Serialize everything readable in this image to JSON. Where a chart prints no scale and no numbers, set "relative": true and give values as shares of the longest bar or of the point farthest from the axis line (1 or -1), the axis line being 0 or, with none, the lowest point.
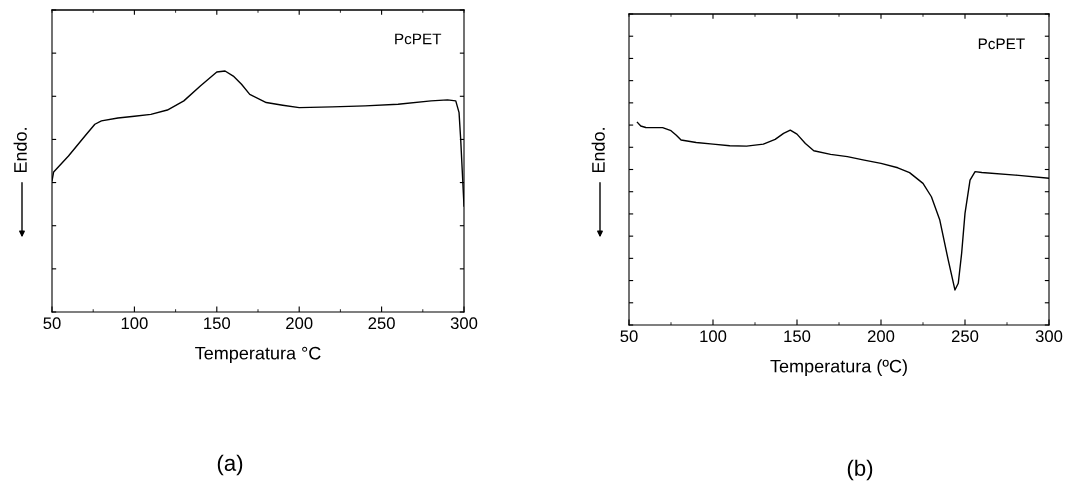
{
  "chart_data": [
    {
      "type": "line",
      "relative": true,
      "xlabel": "Temperatura °C",
      "ylabel": "Endo.",
      "xlim": [
        50,
        300
      ],
      "xticks": [
        50,
        100,
        150,
        200,
        250,
        300
      ],
      "grid": false,
      "legend": false,
      "annotations": [
        "PcPET",
        "(a)"
      ],
      "series": [
        {
          "color": "#000000",
          "x": [
            50,
            51,
            60,
            70,
            76,
            80,
            90,
            100,
            110,
            120,
            130,
            140,
            150,
            155,
            160,
            165,
            170,
            180,
            190,
            200,
            220,
            240,
            260,
            280,
            290,
            295,
            297,
            298,
            299,
            300
          ],
          "values": [
            0.544,
            0.581,
            0.647,
            0.73,
            0.779,
            0.793,
            0.805,
            0.812,
            0.82,
            0.838,
            0.876,
            0.938,
            0.996,
            1,
            0.979,
            0.945,
            0.903,
            0.869,
            0.858,
            0.848,
            0.851,
            0.855,
            0.862,
            0.876,
            0.88,
            0.876,
            0.827,
            0.716,
            0.578,
            0.44
          ]
        }
      ]
    },
    {
      "type": "line",
      "relative": true,
      "xlabel": "Temperatura (ºC)",
      "ylabel": "Endo.",
      "xlim": [
        50,
        300
      ],
      "xticks": [
        50,
        100,
        150,
        200,
        250,
        300
      ],
      "grid": false,
      "legend": false,
      "annotations": [
        "PcPET",
        "(b)"
      ],
      "series": [
        {
          "color": "#000000",
          "x": [
            55,
            57,
            60,
            70,
            75,
            78,
            81,
            90,
            100,
            110,
            120,
            130,
            137,
            142,
            146,
            150,
            155,
            160,
            170,
            180,
            190,
            200,
            210,
            217,
            225,
            230,
            235,
            240,
            244,
            246,
            248,
            250,
            253,
            256,
            260,
            280,
            300
          ],
          "values": [
            1,
            0.982,
            0.975,
            0.974,
            0.959,
            0.938,
            0.913,
            0.901,
            0.893,
            0.885,
            0.883,
            0.893,
            0.916,
            0.946,
            0.962,
            0.942,
            0.896,
            0.86,
            0.842,
            0.831,
            0.814,
            0.798,
            0.776,
            0.752,
            0.699,
            0.633,
            0.518,
            0.321,
            0.173,
            0.206,
            0.354,
            0.551,
            0.715,
            0.757,
            0.753,
            0.74,
            0.724
          ]
        }
      ]
    }
  ]
}
